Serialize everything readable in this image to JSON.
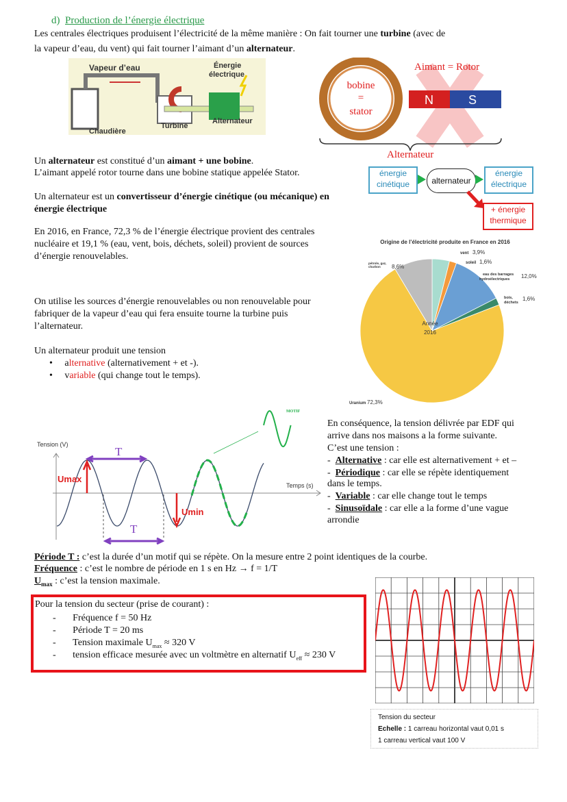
{
  "heading": {
    "number": "d)",
    "title": "Production de l’énergie électrique"
  },
  "intro": {
    "l1a": "Les centrales électriques produisent l’électricité de la même manière : On fait tourner une ",
    "l1b": "turbine",
    "l1c": " (avec de",
    "l2a": "la vapeur d’eau, du vent) qui fait tourner l’aimant d’un ",
    "l2b": "alternateur",
    "l2c": "."
  },
  "steam_diagram": {
    "vapeur": "Vapeur d’eau",
    "energie": "Énergie",
    "electrique": "électrique",
    "turbine": "Turbine",
    "alternateur": "Alternateur",
    "chaudiere": "Chaudière"
  },
  "alternator_image": {
    "aimant": "Aimant = Rotor",
    "bobine": "bobine",
    "eq": "=",
    "stator": "stator",
    "n": "N",
    "s": "S",
    "label": "Alternateur"
  },
  "composition": {
    "l1a": "Un ",
    "l1b": "alternateur",
    "l1c": " est constitué d’un ",
    "l1d": "aimant + une bobine",
    "l1e": ".",
    "l2": "L’aimant appelé rotor tourne dans une bobine statique appelée Stator."
  },
  "converter": {
    "l1a": "Un alternateur est un ",
    "l1b": "convertisseur d’énergie cinétique (ou mécanique) en",
    "l2": "énergie électrique"
  },
  "flow": {
    "in1": "énergie",
    "in2": "cinétique",
    "mid": "alternateur",
    "out1": "énergie",
    "out2": "électrique",
    "loss1": "+ énergie",
    "loss2": "thermique",
    "colors": {
      "box": "#4aa3c8",
      "arrow": "#22b04a",
      "loss": "#e02020"
    }
  },
  "stats": {
    "l1": "En 2016, en France, 72,3 % de l’énergie électrique provient des centrales",
    "l2": "nucléaire et 19,1 % (eau, vent, bois, déchets, soleil) provient de sources",
    "l3": "d’énergie renouvelables."
  },
  "usage": {
    "l1": "On utilise les sources d’énergie renouvelables ou non renouvelable pour",
    "l2": "fabriquer de la vapeur d’eau qui fera ensuite tourne la turbine puis",
    "l3": "l’alternateur."
  },
  "tension": {
    "intro": "Un alternateur produit une tension",
    "b1a": "a",
    "b1b": "lternative",
    "b1c": " (alternativement + et -).",
    "b2a": "v",
    "b2b": "ariable",
    "b2c": " (qui change tout le temps)."
  },
  "chart_data": [
    {
      "type": "pie",
      "title": "Origine de l’électricité produite en France en 2016",
      "center_label": [
        "Année",
        "2016"
      ],
      "slices": [
        {
          "label": "vent",
          "value": 3.9,
          "text": "3,9%",
          "color": "#a8dccf"
        },
        {
          "label": "soleil",
          "value": 1.6,
          "text": "1,6%",
          "color": "#f39a3c"
        },
        {
          "label": "eau des barrages hydroélectriques",
          "value": 12.0,
          "text": "12,0%",
          "color": "#6a9fd4"
        },
        {
          "label": "bois, déchets",
          "value": 1.6,
          "text": "1,6%",
          "color": "#3a8a6a"
        },
        {
          "label": "Uranium",
          "value": 72.3,
          "text": "72,3%",
          "color": "#f6c844"
        },
        {
          "label": "pétrole, gaz, charbon",
          "value": 8.6,
          "text": "8,6%",
          "color": "#bdbdbd"
        }
      ]
    },
    {
      "type": "line",
      "xlabel": "Temps (s)",
      "ylabel": "Tension (V)",
      "labels": {
        "T": "T",
        "umax": "Umax",
        "umin": "Umin",
        "motif": "MOTIF"
      },
      "colors": {
        "curve": "#3a4a6a",
        "arrow": "#8040c0",
        "u": "#e02020",
        "motif": "#22b04a"
      }
    },
    {
      "type": "line",
      "title": "oscillogram",
      "amplitude_divisions": 3.2,
      "period_divisions": 2,
      "grid": {
        "cols": 10,
        "rows": 8
      },
      "color": "#e02020"
    }
  ],
  "consequence": {
    "l1": "En conséquence, la tension délivrée par EDF qui",
    "l2": "arrive dans nos maisons a la forme suivante.",
    "l3": "C’est une tension :",
    "items": [
      {
        "k": "Alternative",
        "v": " : car elle est alternativement + et –"
      },
      {
        "k": "Périodique",
        "v": " : car elle se répète identiquement",
        "v2": "dans le temps."
      },
      {
        "k": "Variable",
        "v": " : car elle change tout le temps"
      },
      {
        "k": "Sinusoïdale",
        "v": " : car elle a la forme d’une vague",
        "v2": "arrondie"
      }
    ]
  },
  "defs": {
    "periode_k": "Période T :",
    "periode_v": " c’est la durée d’un motif qui se répète. On la mesure entre 2 point identiques de la courbe.",
    "freq_k": "Fréquence",
    "freq_v": " : c’est le nombre de période en 1 s  en Hz → f = 1/T",
    "umax_k": "U",
    "umax_sub": "max",
    "umax_v": " : c’est la tension maximale."
  },
  "secteur": {
    "title": "Pour la tension du secteur (prise de courant) :",
    "items": [
      {
        "a": "Fréquence f = 50 Hz"
      },
      {
        "a": "Période T = 20 ms"
      },
      {
        "a": "Tension maximale U",
        "sub": "max",
        "b": " ≈ 320 V"
      },
      {
        "a": "tension efficace mesurée avec un voltmètre en alternatif U",
        "sub": "eff",
        "b": " ≈ 230 V"
      }
    ],
    "dash": "-"
  },
  "oscillo_caption": {
    "l1": "Tension du secteur",
    "l2k": "Echelle :",
    "l2v": " 1 carreau horizontal vaut 0,01 s",
    "l3": "1 carreau vertical vaut 100 V"
  }
}
